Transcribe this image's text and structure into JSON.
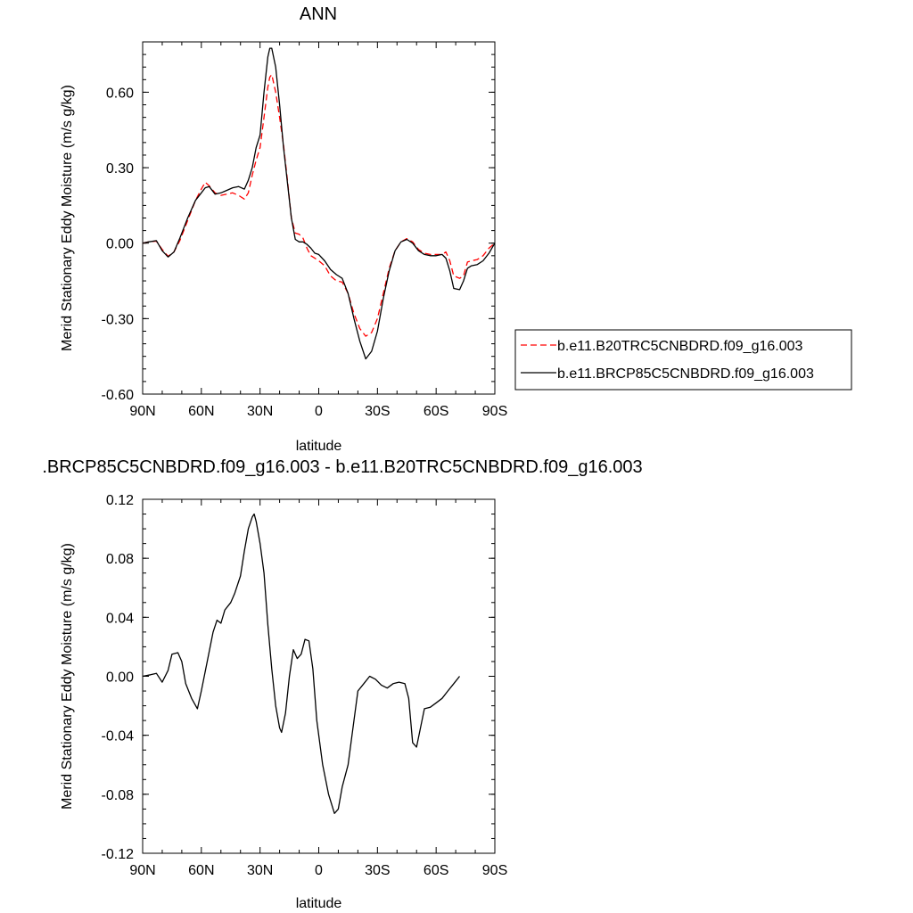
{
  "chart_data": [
    {
      "type": "line",
      "title": "ANN",
      "xlabel": "latitude",
      "ylabel": "Merid Stationary Eddy Moisture (m/s g/kg)",
      "xlim": [
        90,
        -90
      ],
      "ylim": [
        -0.6,
        0.8
      ],
      "x_ticks": [
        90,
        60,
        30,
        0,
        -30,
        -60,
        -90
      ],
      "x_tick_labels": [
        "90N",
        "60N",
        "30N",
        "0",
        "30S",
        "60S",
        "90S"
      ],
      "y_ticks": [
        -0.6,
        -0.3,
        0.0,
        0.3,
        0.6
      ],
      "y_tick_labels": [
        "-0.60",
        "-0.30",
        "0.00",
        "0.30",
        "0.60"
      ],
      "legend_position": "right",
      "series": [
        {
          "name": "b.e11.B20TRC5CNBDRD.f09_g16.003",
          "color": "#ff0000",
          "dash": "dashed",
          "points": [
            [
              90,
              0
            ],
            [
              87,
              0.005
            ],
            [
              83,
              0.008
            ],
            [
              80,
              -0.025
            ],
            [
              77,
              -0.052
            ],
            [
              74,
              -0.035
            ],
            [
              71,
              0.01
            ],
            [
              67,
              0.09
            ],
            [
              63,
              0.17
            ],
            [
              60,
              0.215
            ],
            [
              58,
              0.242
            ],
            [
              56,
              0.228
            ],
            [
              53,
              0.2
            ],
            [
              50,
              0.19
            ],
            [
              47,
              0.195
            ],
            [
              44,
              0.2
            ],
            [
              41,
              0.19
            ],
            [
              38,
              0.175
            ],
            [
              36,
              0.2
            ],
            [
              34,
              0.27
            ],
            [
              32,
              0.33
            ],
            [
              30,
              0.38
            ],
            [
              28,
              0.5
            ],
            [
              26,
              0.62
            ],
            [
              25,
              0.66
            ],
            [
              24,
              0.67
            ],
            [
              22,
              0.6
            ],
            [
              20,
              0.5
            ],
            [
              18,
              0.39
            ],
            [
              16,
              0.25
            ],
            [
              14,
              0.1
            ],
            [
              12,
              0.04
            ],
            [
              10,
              0.035
            ],
            [
              8,
              0.02
            ],
            [
              6,
              -0.02
            ],
            [
              4,
              -0.05
            ],
            [
              2,
              -0.06
            ],
            [
              0,
              -0.07
            ],
            [
              -3,
              -0.09
            ],
            [
              -6,
              -0.13
            ],
            [
              -9,
              -0.15
            ],
            [
              -12,
              -0.155
            ],
            [
              -15,
              -0.2
            ],
            [
              -18,
              -0.28
            ],
            [
              -21,
              -0.34
            ],
            [
              -24,
              -0.37
            ],
            [
              -27,
              -0.355
            ],
            [
              -30,
              -0.3
            ],
            [
              -33,
              -0.2
            ],
            [
              -36,
              -0.1
            ],
            [
              -39,
              -0.03
            ],
            [
              -42,
              0.005
            ],
            [
              -45,
              0.018
            ],
            [
              -48,
              0.005
            ],
            [
              -51,
              -0.025
            ],
            [
              -54,
              -0.04
            ],
            [
              -57,
              -0.045
            ],
            [
              -60,
              -0.045
            ],
            [
              -63,
              -0.045
            ],
            [
              -65,
              -0.035
            ],
            [
              -67,
              -0.07
            ],
            [
              -69,
              -0.13
            ],
            [
              -72,
              -0.14
            ],
            [
              -74,
              -0.13
            ],
            [
              -76,
              -0.075
            ],
            [
              -78,
              -0.07
            ],
            [
              -81,
              -0.065
            ],
            [
              -84,
              -0.05
            ],
            [
              -87,
              -0.02
            ],
            [
              -90,
              0
            ]
          ]
        },
        {
          "name": "b.e11.BRCP85C5CNBDRD.f09_g16.003",
          "color": "#000000",
          "dash": "solid",
          "points": [
            [
              90,
              0
            ],
            [
              87,
              0.005
            ],
            [
              83,
              0.01
            ],
            [
              80,
              -0.03
            ],
            [
              77,
              -0.055
            ],
            [
              74,
              -0.035
            ],
            [
              71,
              0.02
            ],
            [
              67,
              0.1
            ],
            [
              63,
              0.17
            ],
            [
              60,
              0.2
            ],
            [
              58,
              0.22
            ],
            [
              56,
              0.225
            ],
            [
              53,
              0.195
            ],
            [
              50,
              0.2
            ],
            [
              47,
              0.21
            ],
            [
              44,
              0.22
            ],
            [
              41,
              0.225
            ],
            [
              38,
              0.215
            ],
            [
              36,
              0.25
            ],
            [
              34,
              0.3
            ],
            [
              32,
              0.38
            ],
            [
              30,
              0.43
            ],
            [
              28,
              0.6
            ],
            [
              26,
              0.74
            ],
            [
              25,
              0.775
            ],
            [
              24,
              0.775
            ],
            [
              22,
              0.7
            ],
            [
              20,
              0.55
            ],
            [
              18,
              0.38
            ],
            [
              16,
              0.24
            ],
            [
              14,
              0.1
            ],
            [
              12,
              0.015
            ],
            [
              10,
              0.005
            ],
            [
              8,
              0.005
            ],
            [
              6,
              -0.005
            ],
            [
              4,
              -0.02
            ],
            [
              2,
              -0.04
            ],
            [
              0,
              -0.045
            ],
            [
              -3,
              -0.07
            ],
            [
              -6,
              -0.105
            ],
            [
              -9,
              -0.125
            ],
            [
              -12,
              -0.14
            ],
            [
              -15,
              -0.2
            ],
            [
              -18,
              -0.3
            ],
            [
              -21,
              -0.39
            ],
            [
              -24,
              -0.46
            ],
            [
              -27,
              -0.43
            ],
            [
              -30,
              -0.35
            ],
            [
              -33,
              -0.22
            ],
            [
              -36,
              -0.11
            ],
            [
              -39,
              -0.03
            ],
            [
              -42,
              0.005
            ],
            [
              -45,
              0.015
            ],
            [
              -48,
              0
            ],
            [
              -51,
              -0.03
            ],
            [
              -54,
              -0.045
            ],
            [
              -57,
              -0.05
            ],
            [
              -60,
              -0.05
            ],
            [
              -63,
              -0.045
            ],
            [
              -65,
              -0.06
            ],
            [
              -67,
              -0.11
            ],
            [
              -69,
              -0.18
            ],
            [
              -72,
              -0.185
            ],
            [
              -74,
              -0.15
            ],
            [
              -76,
              -0.1
            ],
            [
              -78,
              -0.09
            ],
            [
              -81,
              -0.085
            ],
            [
              -84,
              -0.07
            ],
            [
              -87,
              -0.04
            ],
            [
              -90,
              0
            ]
          ]
        }
      ]
    },
    {
      "type": "line",
      "title": ".BRCP85C5CNBDRD.f09_g16.003 - b.e11.B20TRC5CNBDRD.f09_g16.003",
      "xlabel": "latitude",
      "ylabel": "Merid Stationary Eddy Moisture (m/s g/kg)",
      "xlim": [
        90,
        -90
      ],
      "ylim": [
        -0.12,
        0.12
      ],
      "x_ticks": [
        90,
        60,
        30,
        0,
        -30,
        -60,
        -90
      ],
      "x_tick_labels": [
        "90N",
        "60N",
        "30N",
        "0",
        "30S",
        "60S",
        "90S"
      ],
      "y_ticks": [
        -0.12,
        -0.08,
        -0.04,
        0.0,
        0.04,
        0.08,
        0.12
      ],
      "y_tick_labels": [
        "-0.12",
        "-0.08",
        "-0.04",
        "0.00",
        "0.04",
        "0.08",
        "0.12"
      ],
      "series": [
        {
          "color": "#000000",
          "dash": "solid",
          "points": [
            [
              90,
              0
            ],
            [
              86,
              0.001
            ],
            [
              83,
              0.002
            ],
            [
              80,
              -0.004
            ],
            [
              77,
              0.004
            ],
            [
              75,
              0.015
            ],
            [
              72,
              0.016
            ],
            [
              70,
              0.01
            ],
            [
              68,
              -0.005
            ],
            [
              65,
              -0.015
            ],
            [
              62,
              -0.022
            ],
            [
              60,
              -0.01
            ],
            [
              57,
              0.01
            ],
            [
              54,
              0.03
            ],
            [
              52,
              0.038
            ],
            [
              50,
              0.036
            ],
            [
              48,
              0.045
            ],
            [
              45,
              0.05
            ],
            [
              43,
              0.056
            ],
            [
              40,
              0.068
            ],
            [
              38,
              0.085
            ],
            [
              36,
              0.1
            ],
            [
              34,
              0.108
            ],
            [
              33,
              0.11
            ],
            [
              32,
              0.105
            ],
            [
              30,
              0.09
            ],
            [
              28,
              0.07
            ],
            [
              26,
              0.035
            ],
            [
              24,
              0.005
            ],
            [
              22,
              -0.02
            ],
            [
              20,
              -0.035
            ],
            [
              19,
              -0.038
            ],
            [
              17,
              -0.025
            ],
            [
              15,
              0
            ],
            [
              13,
              0.018
            ],
            [
              11,
              0.012
            ],
            [
              9,
              0.015
            ],
            [
              7,
              0.025
            ],
            [
              5,
              0.024
            ],
            [
              3,
              0.005
            ],
            [
              1,
              -0.03
            ],
            [
              -2,
              -0.06
            ],
            [
              -5,
              -0.08
            ],
            [
              -8,
              -0.093
            ],
            [
              -10,
              -0.09
            ],
            [
              -12,
              -0.075
            ],
            [
              -15,
              -0.06
            ],
            [
              -18,
              -0.03
            ],
            [
              -20,
              -0.01
            ],
            [
              -23,
              -0.005
            ],
            [
              -26,
              0
            ],
            [
              -29,
              -0.002
            ],
            [
              -32,
              -0.006
            ],
            [
              -35,
              -0.008
            ],
            [
              -38,
              -0.005
            ],
            [
              -41,
              -0.004
            ],
            [
              -44,
              -0.005
            ],
            [
              -46,
              -0.015
            ],
            [
              -48,
              -0.045
            ],
            [
              -50,
              -0.048
            ],
            [
              -52,
              -0.035
            ],
            [
              -54,
              -0.022
            ],
            [
              -57,
              -0.021
            ],
            [
              -60,
              -0.018
            ],
            [
              -63,
              -0.015
            ],
            [
              -66,
              -0.01
            ],
            [
              -69,
              -0.005
            ],
            [
              -72,
              0
            ]
          ]
        }
      ]
    }
  ]
}
